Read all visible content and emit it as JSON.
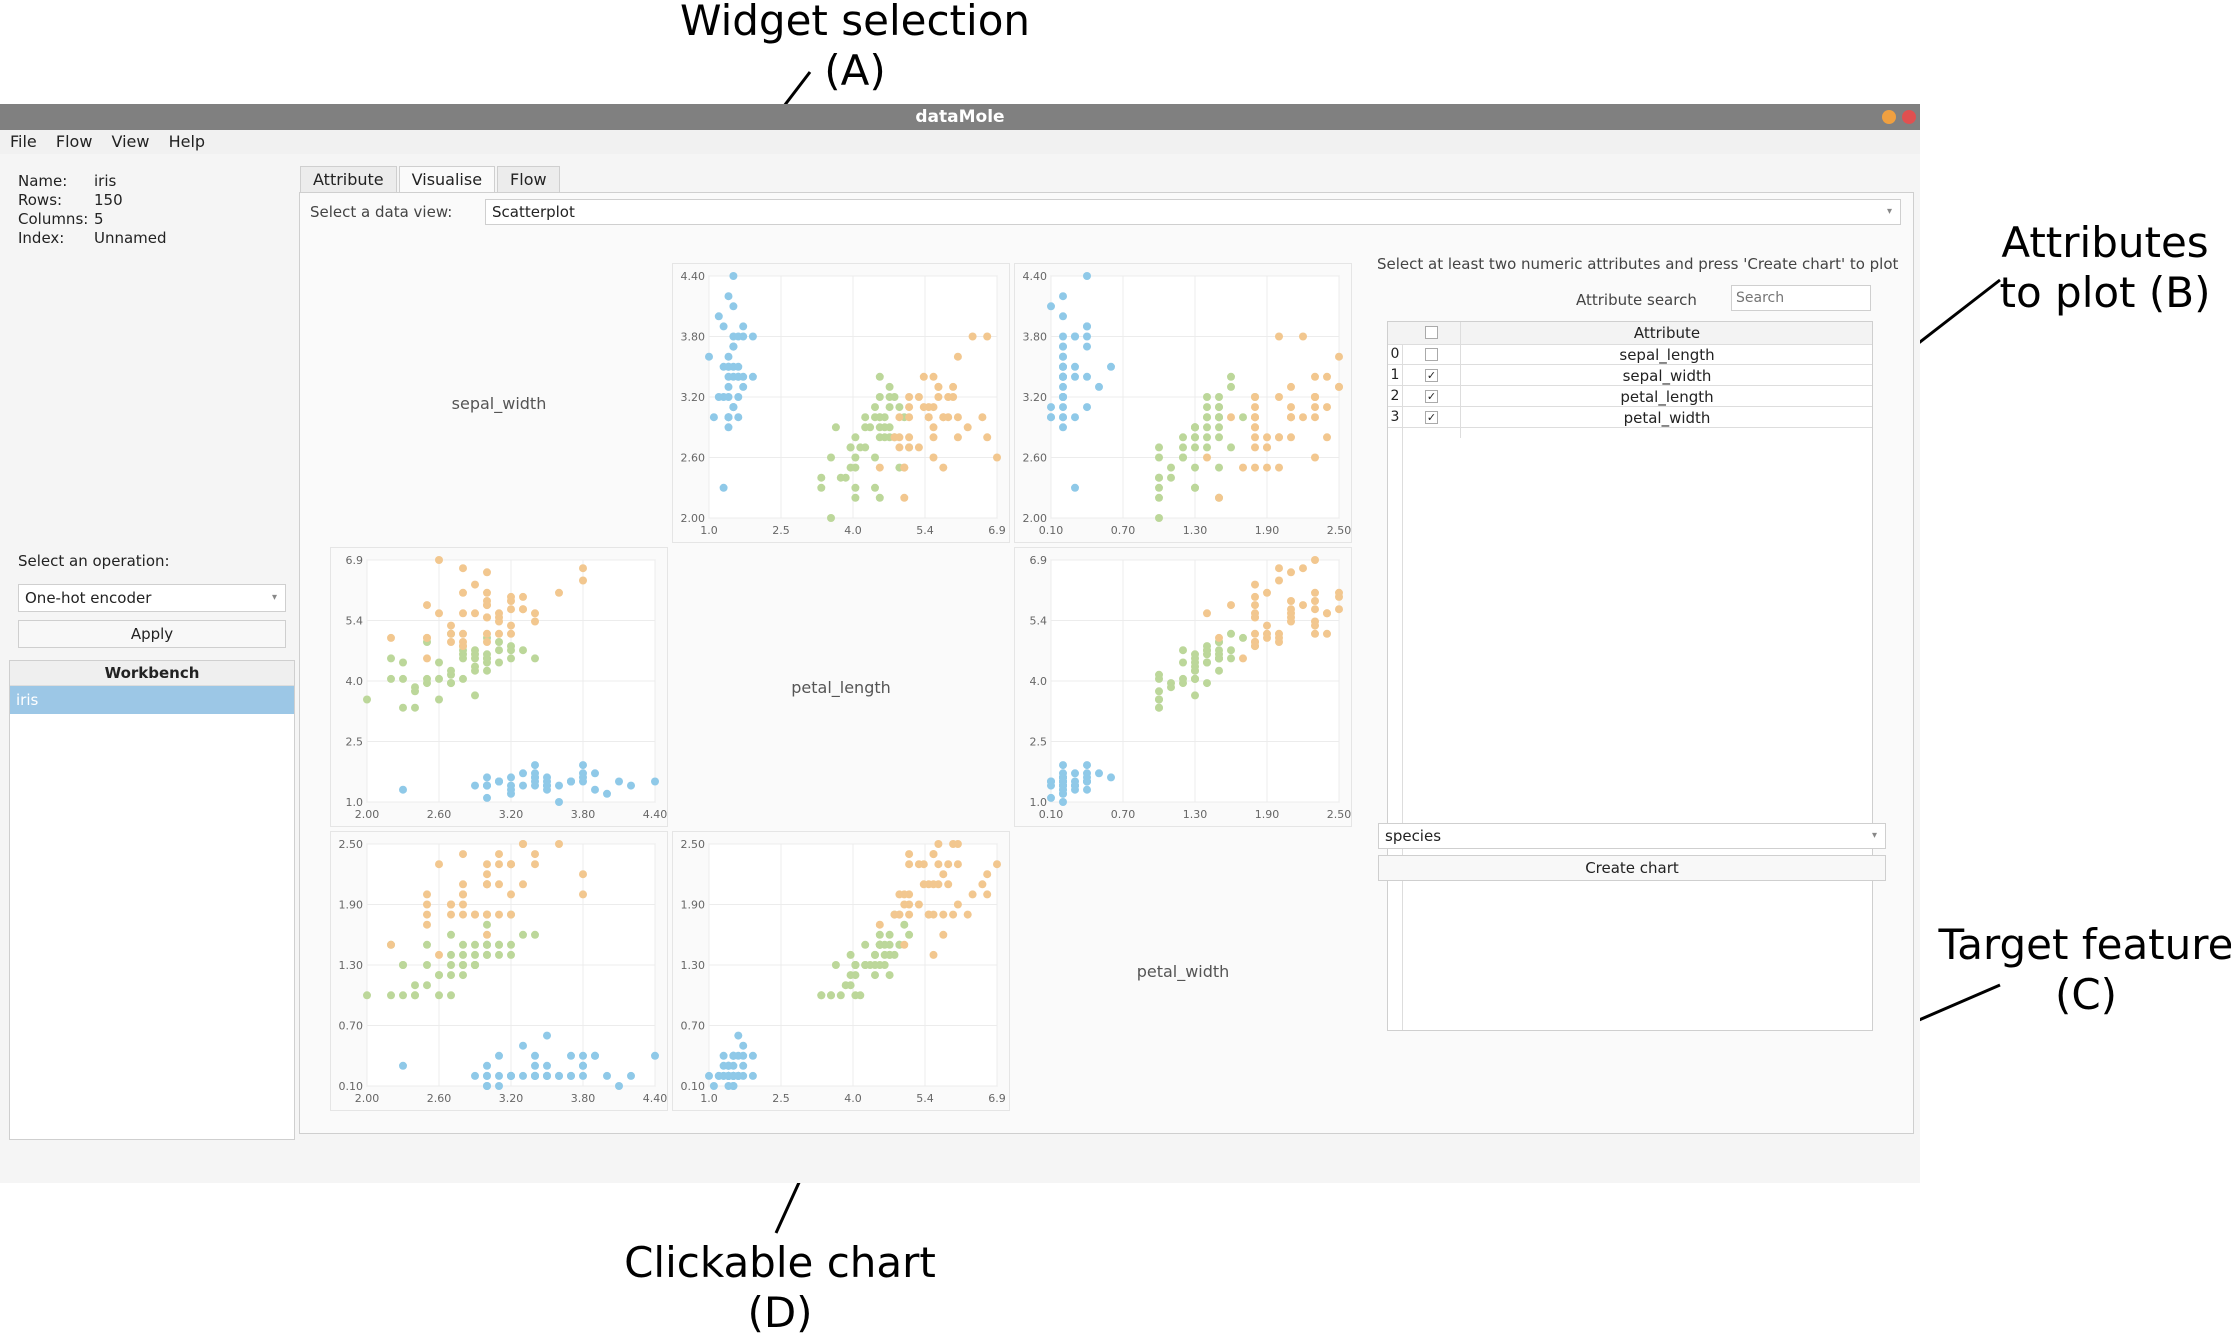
{
  "annotations": {
    "a": [
      "Widget selection",
      "(A)"
    ],
    "b": [
      "Attributes",
      "to plot (B)"
    ],
    "c": [
      "Target feature",
      "(C)"
    ],
    "d": [
      "Clickable chart",
      "(D)"
    ]
  },
  "window": {
    "title": "dataMole",
    "close_color": "#e05050",
    "min_color": "#f0a040"
  },
  "menu": [
    "File",
    "Flow",
    "View",
    "Help"
  ],
  "dataset_info": [
    {
      "key": "Name:",
      "value": "iris"
    },
    {
      "key": "Rows:",
      "value": "150"
    },
    {
      "key": "Columns:",
      "value": "5"
    },
    {
      "key": "Index:",
      "value": "Unnamed"
    }
  ],
  "operation": {
    "label": "Select an operation:",
    "selected": "One-hot encoder",
    "apply": "Apply"
  },
  "workbench": {
    "header": "Workbench",
    "items": [
      "iris"
    ]
  },
  "tabs": [
    "Attribute",
    "Visualise",
    "Flow"
  ],
  "active_tab": "Visualise",
  "view_select": {
    "label": "Select a data view:",
    "selected": "Scatterplot"
  },
  "right_panel": {
    "instruction": "Select at least two numeric attributes and press 'Create chart' to plot",
    "search_label": "Attribute search",
    "search_placeholder": "Search",
    "column_header": "Attribute",
    "rows": [
      {
        "index": "0",
        "name": "sepal_length",
        "checked": false
      },
      {
        "index": "1",
        "name": "sepal_width",
        "checked": true
      },
      {
        "index": "2",
        "name": "petal_length",
        "checked": true
      },
      {
        "index": "3",
        "name": "petal_width",
        "checked": true
      }
    ],
    "target": "species",
    "create_button": "Create chart"
  },
  "chart_data": {
    "type": "scatter",
    "variables": [
      "sepal_width",
      "petal_length",
      "petal_width"
    ],
    "colors": {
      "setosa": "#8fc9e8",
      "versicolor": "#bcd79a",
      "virginica": "#f2c78f"
    },
    "ticks": {
      "sepal_width": [
        "2.00",
        "2.60",
        "3.20",
        "3.80",
        "4.40"
      ],
      "petal_length": [
        "1.0",
        "2.5",
        "4.0",
        "5.4",
        "6.9"
      ],
      "petal_width": [
        "0.10",
        "0.70",
        "1.30",
        "1.90",
        "2.50"
      ]
    },
    "ranges": {
      "sepal_width": [
        2.0,
        4.4
      ],
      "petal_length": [
        1.0,
        6.9
      ],
      "petal_width": [
        0.1,
        2.5
      ]
    },
    "points": {
      "setosa": [
        [
          3.5,
          1.4,
          0.2
        ],
        [
          3.0,
          1.4,
          0.2
        ],
        [
          3.2,
          1.3,
          0.2
        ],
        [
          3.1,
          1.5,
          0.2
        ],
        [
          3.6,
          1.4,
          0.2
        ],
        [
          3.9,
          1.7,
          0.4
        ],
        [
          3.4,
          1.4,
          0.3
        ],
        [
          3.4,
          1.5,
          0.2
        ],
        [
          2.9,
          1.4,
          0.2
        ],
        [
          3.1,
          1.5,
          0.1
        ],
        [
          3.7,
          1.5,
          0.2
        ],
        [
          3.4,
          1.6,
          0.2
        ],
        [
          3.0,
          1.4,
          0.1
        ],
        [
          3.0,
          1.1,
          0.1
        ],
        [
          4.0,
          1.2,
          0.2
        ],
        [
          4.4,
          1.5,
          0.4
        ],
        [
          3.9,
          1.3,
          0.4
        ],
        [
          3.5,
          1.4,
          0.3
        ],
        [
          3.8,
          1.7,
          0.3
        ],
        [
          3.8,
          1.5,
          0.3
        ],
        [
          3.4,
          1.7,
          0.2
        ],
        [
          3.7,
          1.5,
          0.4
        ],
        [
          3.6,
          1.0,
          0.2
        ],
        [
          3.3,
          1.7,
          0.5
        ],
        [
          3.4,
          1.9,
          0.2
        ],
        [
          3.0,
          1.6,
          0.2
        ],
        [
          3.4,
          1.6,
          0.4
        ],
        [
          3.5,
          1.5,
          0.2
        ],
        [
          3.2,
          1.6,
          0.2
        ],
        [
          3.1,
          1.5,
          0.4
        ],
        [
          4.1,
          1.5,
          0.1
        ],
        [
          4.2,
          1.4,
          0.2
        ],
        [
          3.2,
          1.2,
          0.2
        ],
        [
          3.5,
          1.3,
          0.2
        ],
        [
          2.3,
          1.3,
          0.3
        ],
        [
          3.8,
          1.9,
          0.4
        ],
        [
          3.0,
          1.4,
          0.3
        ],
        [
          3.8,
          1.6,
          0.2
        ],
        [
          3.2,
          1.4,
          0.2
        ],
        [
          3.7,
          1.5,
          0.2
        ],
        [
          3.3,
          1.4,
          0.2
        ],
        [
          3.5,
          1.6,
          0.6
        ]
      ],
      "versicolor": [
        [
          3.2,
          4.7,
          1.4
        ],
        [
          3.2,
          4.5,
          1.5
        ],
        [
          3.1,
          4.9,
          1.5
        ],
        [
          2.3,
          4.0,
          1.3
        ],
        [
          2.8,
          4.6,
          1.5
        ],
        [
          2.8,
          4.5,
          1.3
        ],
        [
          3.3,
          4.7,
          1.6
        ],
        [
          2.4,
          3.3,
          1.0
        ],
        [
          2.9,
          4.6,
          1.3
        ],
        [
          2.7,
          3.9,
          1.4
        ],
        [
          2.0,
          3.5,
          1.0
        ],
        [
          3.0,
          4.2,
          1.5
        ],
        [
          2.2,
          4.0,
          1.0
        ],
        [
          2.9,
          4.7,
          1.4
        ],
        [
          2.9,
          3.6,
          1.3
        ],
        [
          3.1,
          4.4,
          1.4
        ],
        [
          3.0,
          4.5,
          1.5
        ],
        [
          2.7,
          4.1,
          1.0
        ],
        [
          2.2,
          4.5,
          1.5
        ],
        [
          2.5,
          3.9,
          1.1
        ],
        [
          3.2,
          4.8,
          1.8
        ],
        [
          2.8,
          4.0,
          1.3
        ],
        [
          2.5,
          4.9,
          1.5
        ],
        [
          2.8,
          4.7,
          1.2
        ],
        [
          2.9,
          4.3,
          1.3
        ],
        [
          3.0,
          4.4,
          1.4
        ],
        [
          2.8,
          4.8,
          1.4
        ],
        [
          3.0,
          5.0,
          1.7
        ],
        [
          2.9,
          4.5,
          1.5
        ],
        [
          2.6,
          3.5,
          1.0
        ],
        [
          2.4,
          3.8,
          1.1
        ],
        [
          2.4,
          3.7,
          1.0
        ],
        [
          2.7,
          3.9,
          1.2
        ],
        [
          2.7,
          5.1,
          1.6
        ],
        [
          3.0,
          4.5,
          1.5
        ],
        [
          3.4,
          4.5,
          1.6
        ],
        [
          3.1,
          4.7,
          1.5
        ],
        [
          2.3,
          4.4,
          1.3
        ],
        [
          2.5,
          4.0,
          1.3
        ],
        [
          2.6,
          4.4,
          1.2
        ],
        [
          3.0,
          4.6,
          1.4
        ],
        [
          2.6,
          4.0,
          1.2
        ],
        [
          2.3,
          3.3,
          1.0
        ],
        [
          2.7,
          4.2,
          1.3
        ],
        [
          2.9,
          4.2,
          1.3
        ]
      ],
      "virginica": [
        [
          3.3,
          6.0,
          2.5
        ],
        [
          2.7,
          5.1,
          1.9
        ],
        [
          3.0,
          5.9,
          2.1
        ],
        [
          2.9,
          5.6,
          1.8
        ],
        [
          3.0,
          5.8,
          2.2
        ],
        [
          3.0,
          6.6,
          2.1
        ],
        [
          2.5,
          4.5,
          1.7
        ],
        [
          2.9,
          6.3,
          1.8
        ],
        [
          2.5,
          5.8,
          1.8
        ],
        [
          3.6,
          6.1,
          2.5
        ],
        [
          3.2,
          5.1,
          2.0
        ],
        [
          2.7,
          5.3,
          1.9
        ],
        [
          3.0,
          5.5,
          2.1
        ],
        [
          2.5,
          5.0,
          2.0
        ],
        [
          2.8,
          5.1,
          2.4
        ],
        [
          3.2,
          5.3,
          2.3
        ],
        [
          3.0,
          5.5,
          1.8
        ],
        [
          3.8,
          6.7,
          2.2
        ],
        [
          2.6,
          6.9,
          2.3
        ],
        [
          2.2,
          5.0,
          1.5
        ],
        [
          3.2,
          5.7,
          2.3
        ],
        [
          2.8,
          4.9,
          2.0
        ],
        [
          2.8,
          6.7,
          2.0
        ],
        [
          2.7,
          4.9,
          1.8
        ],
        [
          3.3,
          5.7,
          2.1
        ],
        [
          3.2,
          6.0,
          1.8
        ],
        [
          2.8,
          4.8,
          1.8
        ],
        [
          3.0,
          4.9,
          1.8
        ],
        [
          2.8,
          5.6,
          2.1
        ],
        [
          3.0,
          5.8,
          1.6
        ],
        [
          2.8,
          6.1,
          1.9
        ],
        [
          3.8,
          6.4,
          2.0
        ],
        [
          2.6,
          5.6,
          1.4
        ],
        [
          3.0,
          6.1,
          2.3
        ],
        [
          3.4,
          5.6,
          2.4
        ],
        [
          3.1,
          5.5,
          1.8
        ],
        [
          3.1,
          5.4,
          2.1
        ],
        [
          3.1,
          5.6,
          2.4
        ],
        [
          3.1,
          5.1,
          2.3
        ],
        [
          3.2,
          5.9,
          2.3
        ],
        [
          3.3,
          5.7,
          2.5
        ],
        [
          2.5,
          5.0,
          1.9
        ],
        [
          3.4,
          5.4,
          2.3
        ],
        [
          3.0,
          5.1,
          1.8
        ]
      ]
    }
  }
}
